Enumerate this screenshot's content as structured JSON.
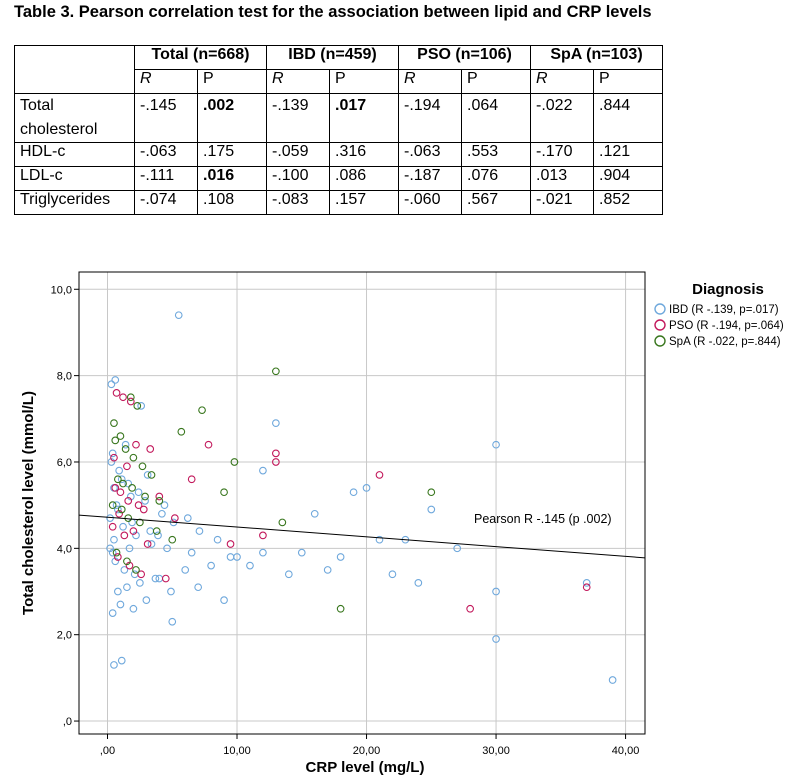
{
  "caption": "Table 3. Pearson correlation test for the association between lipid and CRP levels",
  "table": {
    "groups": [
      "Total (n=668)",
      "IBD (n=459)",
      "PSO (n=106)",
      "SpA (n=103)"
    ],
    "subheaders": [
      "R",
      "P"
    ],
    "rows": [
      {
        "label": "Total cholesterol",
        "cells": [
          {
            "v": "-.145",
            "bold": false
          },
          {
            "v": ".002",
            "bold": true
          },
          {
            "v": "-.139",
            "bold": false
          },
          {
            "v": ".017",
            "bold": true
          },
          {
            "v": "-.194",
            "bold": false
          },
          {
            "v": ".064",
            "bold": false
          },
          {
            "v": "-.022",
            "bold": false
          },
          {
            "v": ".844",
            "bold": false
          }
        ]
      },
      {
        "label": "HDL-c",
        "cells": [
          {
            "v": "-.063",
            "bold": false
          },
          {
            "v": ".175",
            "bold": false
          },
          {
            "v": "-.059",
            "bold": false
          },
          {
            "v": ".316",
            "bold": false
          },
          {
            "v": "-.063",
            "bold": false
          },
          {
            "v": ".553",
            "bold": false
          },
          {
            "v": "-.170",
            "bold": false
          },
          {
            "v": ".121",
            "bold": false
          }
        ]
      },
      {
        "label": "LDL-c",
        "cells": [
          {
            "v": "-.111",
            "bold": false
          },
          {
            "v": ".016",
            "bold": true
          },
          {
            "v": "-.100",
            "bold": false
          },
          {
            "v": ".086",
            "bold": false
          },
          {
            "v": "-.187",
            "bold": false
          },
          {
            "v": ".076",
            "bold": false
          },
          {
            "v": ".013",
            "bold": false
          },
          {
            "v": ".904",
            "bold": false
          }
        ]
      },
      {
        "label": "Triglycerides",
        "cells": [
          {
            "v": "-.074",
            "bold": false
          },
          {
            "v": ".108",
            "bold": false
          },
          {
            "v": "-.083",
            "bold": false
          },
          {
            "v": ".157",
            "bold": false
          },
          {
            "v": "-.060",
            "bold": false
          },
          {
            "v": ".567",
            "bold": false
          },
          {
            "v": "-.021",
            "bold": false
          },
          {
            "v": ".852",
            "bold": false
          }
        ]
      }
    ]
  },
  "chart_data": {
    "type": "scatter",
    "xlabel": "CRP level (mg/L)",
    "ylabel": "Total cholesterol level (mmol/L)",
    "xlim": [
      -2.2,
      41.5
    ],
    "ylim": [
      -0.3,
      10.4
    ],
    "xticks": [
      0,
      10,
      20,
      30,
      40
    ],
    "xtick_labels": [
      ",00",
      "10,00",
      "20,00",
      "30,00",
      "40,00"
    ],
    "yticks": [
      0,
      2,
      4,
      6,
      8,
      10
    ],
    "ytick_labels": [
      ",0",
      "2,0",
      "4,0",
      "6,0",
      "8,0",
      "10,0"
    ],
    "grid": true,
    "legend_position": "right",
    "legend_title": "Diagnosis",
    "fit_line": {
      "label": "Pearson R -.145 (p .002)",
      "x": [
        -2.2,
        41.5
      ],
      "y": [
        4.77,
        3.78
      ]
    },
    "series": [
      {
        "name": "IBD (R -.139, p=.017)",
        "color": "#6fa8dc",
        "x": [
          5.5,
          13,
          0.3,
          0.6,
          30,
          12,
          16,
          19,
          20,
          21,
          23,
          25,
          27,
          22,
          24,
          30,
          37,
          39,
          30,
          1.1,
          0.5,
          0.4,
          1,
          2,
          3,
          0.8,
          1.5,
          2.5,
          4,
          5,
          6,
          7,
          8,
          9,
          10,
          11,
          12,
          14,
          15,
          17,
          18,
          0.2,
          0.5,
          1.2,
          2.2,
          3.4,
          4.6,
          6.5,
          8.5,
          9.5,
          0.7,
          1.8,
          2.9,
          4.2,
          5.1,
          7.1,
          0.3,
          0.9,
          1.6,
          3.1,
          0.4,
          1.4,
          2.6,
          0.6,
          1.3,
          2.1,
          3.7,
          4.9,
          0.2,
          0.8,
          1.9,
          3.3,
          0.5,
          1.1,
          2.4,
          4.4,
          6.2,
          0.4,
          1.7,
          3.9
        ],
        "y": [
          9.4,
          6.9,
          7.8,
          7.9,
          6.4,
          5.8,
          4.8,
          5.3,
          5.4,
          4.2,
          4.2,
          4.9,
          4.0,
          3.4,
          3.2,
          3.0,
          3.2,
          0.95,
          1.9,
          1.4,
          1.3,
          2.5,
          2.7,
          2.6,
          2.8,
          3.0,
          3.1,
          3.2,
          3.3,
          2.3,
          3.5,
          3.1,
          3.6,
          2.8,
          3.8,
          3.6,
          3.9,
          3.4,
          3.9,
          3.5,
          3.8,
          4.0,
          4.2,
          4.5,
          4.3,
          4.1,
          4.0,
          3.9,
          4.2,
          3.8,
          5.0,
          5.2,
          5.1,
          4.8,
          4.6,
          4.4,
          6.0,
          5.8,
          5.5,
          5.7,
          6.2,
          6.4,
          7.3,
          3.7,
          3.5,
          3.4,
          3.3,
          3.0,
          4.7,
          4.9,
          4.6,
          4.4,
          5.4,
          5.6,
          5.3,
          5.0,
          4.7,
          3.9,
          4.0,
          4.3
        ]
      },
      {
        "name": "PSO (R -.194, p=.064)",
        "color": "#c2185b",
        "x": [
          0.7,
          1.2,
          1.8,
          2.2,
          0.5,
          1.5,
          3.3,
          13,
          13,
          21,
          28,
          37,
          7.8,
          6.5,
          0.6,
          1.0,
          1.6,
          2.4,
          0.9,
          2.8,
          4.0,
          5.2,
          0.4,
          1.3,
          2.0,
          3.1,
          0.8,
          1.7,
          2.6,
          4.5,
          9.5,
          12
        ],
        "y": [
          7.6,
          7.5,
          7.4,
          6.4,
          6.1,
          5.9,
          6.3,
          6.2,
          6.0,
          5.7,
          2.6,
          3.1,
          6.4,
          5.6,
          5.4,
          5.3,
          5.1,
          5.0,
          4.8,
          4.9,
          5.2,
          4.7,
          4.5,
          4.3,
          4.4,
          4.1,
          3.8,
          3.6,
          3.4,
          3.3,
          4.1,
          4.3
        ]
      },
      {
        "name": "SpA (R -.022, p=.844)",
        "color": "#38761d",
        "x": [
          13,
          0.5,
          1.8,
          2.3,
          7.3,
          5.7,
          9.8,
          25,
          18,
          0.6,
          1.0,
          1.4,
          2.0,
          2.7,
          3.4,
          0.8,
          1.2,
          1.9,
          2.9,
          4.0,
          0.4,
          1.1,
          1.6,
          2.5,
          3.8,
          5.0,
          9.0,
          13.5,
          0.7,
          1.5,
          2.2
        ],
        "y": [
          8.1,
          6.9,
          7.5,
          7.3,
          7.2,
          6.7,
          6.0,
          5.3,
          2.6,
          6.5,
          6.6,
          6.3,
          6.1,
          5.9,
          5.7,
          5.6,
          5.5,
          5.4,
          5.2,
          5.1,
          5.0,
          4.9,
          4.7,
          4.6,
          4.4,
          4.2,
          5.3,
          4.6,
          3.9,
          3.7,
          3.5
        ]
      }
    ]
  }
}
